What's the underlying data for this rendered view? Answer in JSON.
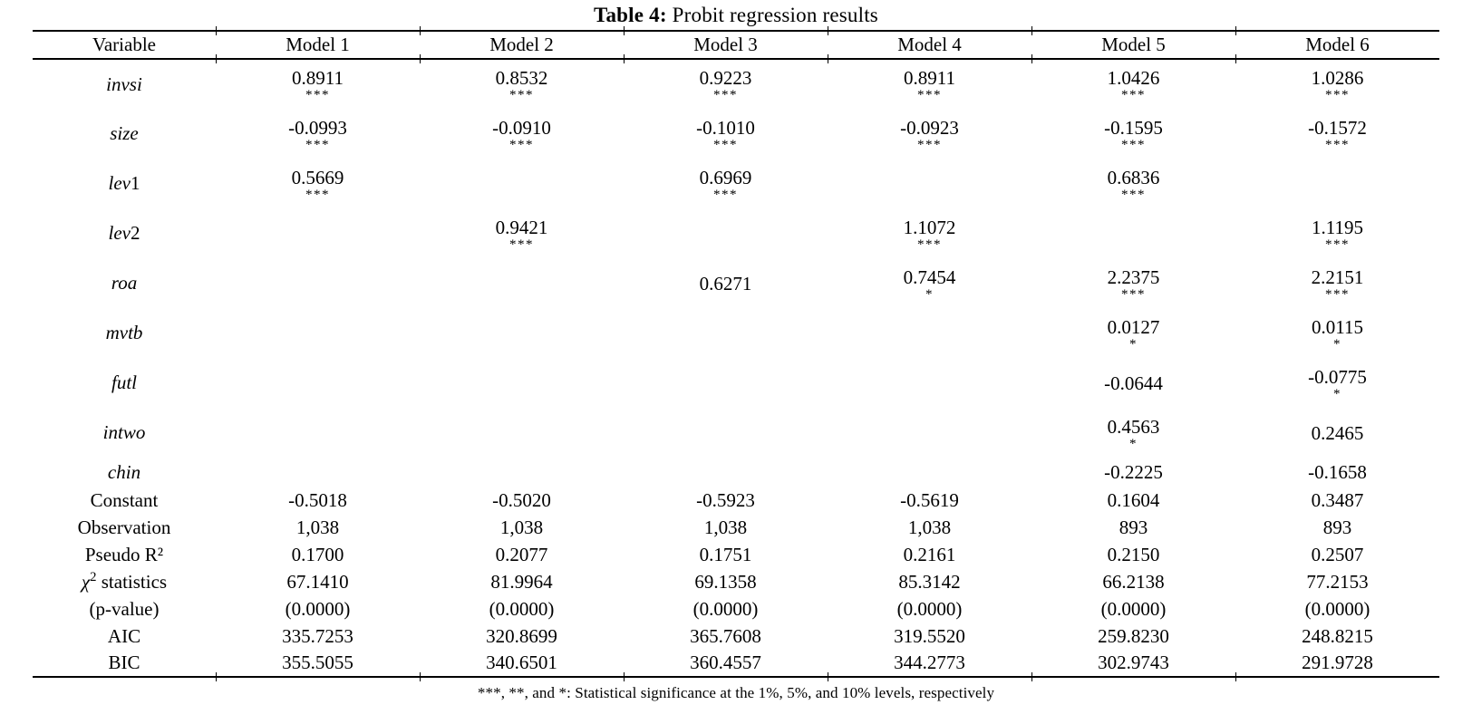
{
  "title": {
    "label": "Table 4:",
    "text": " Probit regression results"
  },
  "footnote": "***, **, and *: Statistical significance at the 1%, 5%, and 10% levels, respectively",
  "colors": {
    "text": "#000000",
    "background": "#ffffff",
    "rule": "#000000"
  },
  "table": {
    "columns": [
      "Variable",
      "Model 1",
      "Model 2",
      "Model 3",
      "Model 4",
      "Model 5",
      "Model 6"
    ],
    "coef_rows": [
      {
        "id": "invsi",
        "label": [
          {
            "t": "invsi",
            "i": true
          }
        ],
        "short": false,
        "cells": [
          {
            "v": "0.8911",
            "s": "***"
          },
          {
            "v": "0.8532",
            "s": "***"
          },
          {
            "v": "0.9223",
            "s": "***"
          },
          {
            "v": "0.8911",
            "s": "***"
          },
          {
            "v": "1.0426",
            "s": "***"
          },
          {
            "v": "1.0286",
            "s": "***"
          }
        ]
      },
      {
        "id": "size",
        "label": [
          {
            "t": "size",
            "i": true
          }
        ],
        "short": false,
        "cells": [
          {
            "v": "-0.0993",
            "s": "***"
          },
          {
            "v": "-0.0910",
            "s": "***"
          },
          {
            "v": "-0.1010",
            "s": "***"
          },
          {
            "v": "-0.0923",
            "s": "***"
          },
          {
            "v": "-0.1595",
            "s": "***"
          },
          {
            "v": "-0.1572",
            "s": "***"
          }
        ]
      },
      {
        "id": "lev1",
        "label": [
          {
            "t": "lev",
            "i": true
          },
          {
            "t": "1"
          }
        ],
        "short": false,
        "cells": [
          {
            "v": "0.5669",
            "s": "***"
          },
          null,
          {
            "v": "0.6969",
            "s": "***"
          },
          null,
          {
            "v": "0.6836",
            "s": "***"
          },
          null
        ]
      },
      {
        "id": "lev2",
        "label": [
          {
            "t": "lev",
            "i": true
          },
          {
            "t": "2"
          }
        ],
        "short": false,
        "cells": [
          null,
          {
            "v": "0.9421",
            "s": "***"
          },
          null,
          {
            "v": "1.1072",
            "s": "***"
          },
          null,
          {
            "v": "1.1195",
            "s": "***"
          }
        ]
      },
      {
        "id": "roa",
        "label": [
          {
            "t": "roa",
            "i": true
          }
        ],
        "short": false,
        "cells": [
          null,
          null,
          {
            "v": "0.6271",
            "s": ""
          },
          {
            "v": "0.7454",
            "s": "*"
          },
          {
            "v": "2.2375",
            "s": "***"
          },
          {
            "v": "2.2151",
            "s": "***"
          }
        ]
      },
      {
        "id": "mvtb",
        "label": [
          {
            "t": "mvtb",
            "i": true
          }
        ],
        "short": false,
        "cells": [
          null,
          null,
          null,
          null,
          {
            "v": "0.0127",
            "s": "*"
          },
          {
            "v": "0.0115",
            "s": "*"
          }
        ]
      },
      {
        "id": "futl",
        "label": [
          {
            "t": "futl",
            "i": true
          }
        ],
        "short": false,
        "cells": [
          null,
          null,
          null,
          null,
          {
            "v": "-0.0644",
            "s": ""
          },
          {
            "v": "-0.0775",
            "s": "*"
          }
        ]
      },
      {
        "id": "intwo",
        "label": [
          {
            "t": "intwo",
            "i": true
          }
        ],
        "short": false,
        "cells": [
          null,
          null,
          null,
          null,
          {
            "v": "0.4563",
            "s": "*"
          },
          {
            "v": "0.2465",
            "s": ""
          }
        ]
      },
      {
        "id": "chin",
        "label": [
          {
            "t": "chin",
            "i": true
          }
        ],
        "short": true,
        "cells": [
          null,
          null,
          null,
          null,
          {
            "v": "-0.2225",
            "s": ""
          },
          {
            "v": "-0.1658",
            "s": ""
          }
        ]
      }
    ],
    "stat_rows": [
      {
        "id": "constant",
        "label": [
          {
            "t": "Constant"
          }
        ],
        "values": [
          "-0.5018",
          "-0.5020",
          "-0.5923",
          "-0.5619",
          "0.1604",
          "0.3487"
        ]
      },
      {
        "id": "observation",
        "label": [
          {
            "t": "Observation"
          }
        ],
        "values": [
          "1,038",
          "1,038",
          "1,038",
          "1,038",
          "893",
          "893"
        ]
      },
      {
        "id": "pseudo-r2",
        "label": [
          {
            "t": "Pseudo R²"
          }
        ],
        "values": [
          "0.1700",
          "0.2077",
          "0.1751",
          "0.2161",
          "0.2150",
          "0.2507"
        ]
      },
      {
        "id": "chi2-statistics",
        "label": [
          {
            "t": "χ",
            "i": true
          },
          {
            "t": "2",
            "sup": true
          },
          {
            "t": " statistics"
          }
        ],
        "values": [
          "67.1410",
          "81.9964",
          "69.1358",
          "85.3142",
          "66.2138",
          "77.2153"
        ]
      },
      {
        "id": "p-value",
        "label": [
          {
            "t": "(p-value)"
          }
        ],
        "values": [
          "(0.0000)",
          "(0.0000)",
          "(0.0000)",
          "(0.0000)",
          "(0.0000)",
          "(0.0000)"
        ]
      },
      {
        "id": "aic",
        "label": [
          {
            "t": "AIC"
          }
        ],
        "values": [
          "335.7253",
          "320.8699",
          "365.7608",
          "319.5520",
          "259.8230",
          "248.8215"
        ]
      },
      {
        "id": "bic",
        "label": [
          {
            "t": "BIC"
          }
        ],
        "values": [
          "355.5055",
          "340.6501",
          "360.4557",
          "344.2773",
          "302.9743",
          "291.9728"
        ]
      }
    ]
  }
}
